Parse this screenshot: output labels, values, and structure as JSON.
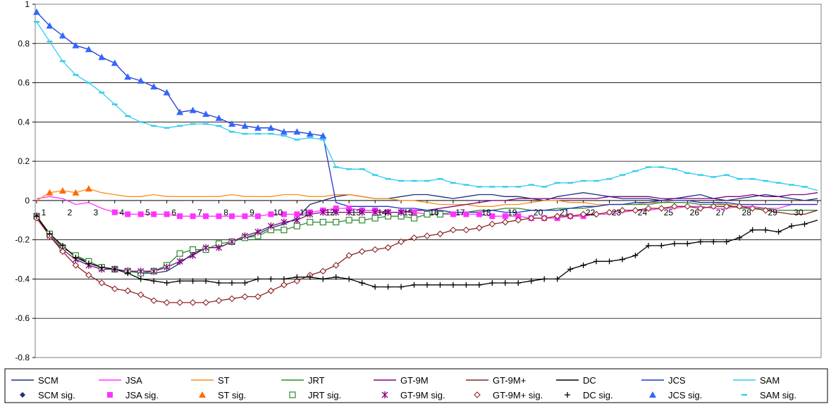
{
  "chart_data": {
    "type": "line",
    "title": "",
    "xlabel": "",
    "ylabel": "",
    "ylim": [
      -0.8,
      1.0
    ],
    "yticks": [
      "1",
      "0.8",
      "0.6",
      "0.4",
      "0.2",
      "0",
      "-0.2",
      "-0.4",
      "-0.6",
      "-0.8"
    ],
    "xticks": [
      "1",
      "2",
      "3",
      "4",
      "5",
      "6",
      "7",
      "8",
      "9",
      "10",
      "11",
      "12",
      "13",
      "14",
      "15",
      "16",
      "17",
      "18",
      "19",
      "20",
      "21",
      "22",
      "23",
      "24",
      "25",
      "26",
      "27",
      "28",
      "29",
      "30"
    ],
    "grid": "horizontal",
    "legend_position": "bottom",
    "legend": {
      "lines": [
        {
          "label": "SCM",
          "color": "#1f2f7a"
        },
        {
          "label": "JSA",
          "color": "#ff33ff"
        },
        {
          "label": "ST",
          "color": "#ff8c1a"
        },
        {
          "label": "JRT",
          "color": "#2e8b2e"
        },
        {
          "label": "GT-9M",
          "color": "#800080"
        },
        {
          "label": "GT-9M+",
          "color": "#8b2323"
        },
        {
          "label": "DC",
          "color": "#000000"
        },
        {
          "label": "JCS",
          "color": "#2233cc"
        },
        {
          "label": "SAM",
          "color": "#33ccee"
        }
      ],
      "markers": [
        {
          "label": "SCM sig.",
          "marker": "diamond",
          "color": "#1f2f7a"
        },
        {
          "label": "JSA sig.",
          "marker": "square",
          "color": "#ff33ff"
        },
        {
          "label": "ST sig.",
          "marker": "triangle",
          "color": "#ff6a00"
        },
        {
          "label": "JRT sig.",
          "marker": "open-square",
          "color": "#2e8b2e"
        },
        {
          "label": "GT-9M sig.",
          "marker": "star",
          "color": "#800080"
        },
        {
          "label": "GT-9M+ sig.",
          "marker": "open-diamond",
          "color": "#8b2323"
        },
        {
          "label": "DC sig.",
          "marker": "plus",
          "color": "#000000"
        },
        {
          "label": "JCS sig.",
          "marker": "triangle",
          "color": "#3366ff"
        },
        {
          "label": "SAM sig.",
          "marker": "dash",
          "color": "#33ccee"
        }
      ]
    },
    "series": [
      {
        "name": "SCM",
        "color": "#1f2f7a",
        "marker": "diamond",
        "sig_range": [
          1,
          1
        ],
        "values": [
          -0.08,
          -0.17,
          -0.24,
          -0.28,
          -0.32,
          -0.34,
          -0.35,
          -0.36,
          -0.37,
          -0.37,
          -0.36,
          -0.32,
          -0.27,
          -0.24,
          -0.24,
          -0.21,
          -0.19,
          -0.17,
          -0.14,
          -0.12,
          -0.09,
          -0.02,
          0.0,
          0.02,
          0.03,
          0.02,
          0.01,
          0.01,
          0.02,
          0.03,
          0.03,
          0.02,
          0.01,
          0.02,
          0.03,
          0.03,
          0.02,
          0.02,
          0.01,
          0.0,
          0.02,
          0.03,
          0.04,
          0.03,
          0.02,
          0.01,
          0.01,
          0.01,
          0.0,
          0.01,
          0.02,
          0.03,
          0.01,
          0.0,
          0.01,
          0.02,
          0.03,
          0.02,
          0.01,
          0.0,
          0.01
        ]
      },
      {
        "name": "JSA",
        "color": "#ff33ff",
        "marker": "square",
        "sig_range": [
          4,
          22
        ],
        "values": [
          0.01,
          0.02,
          0.01,
          -0.02,
          -0.01,
          -0.04,
          -0.06,
          -0.07,
          -0.07,
          -0.07,
          -0.07,
          -0.08,
          -0.08,
          -0.08,
          -0.08,
          -0.08,
          -0.08,
          -0.08,
          -0.07,
          -0.07,
          -0.07,
          -0.06,
          -0.05,
          -0.04,
          -0.04,
          -0.05,
          -0.05,
          -0.06,
          -0.06,
          -0.06,
          -0.07,
          -0.07,
          -0.07,
          -0.07,
          -0.07,
          -0.08,
          -0.08,
          -0.08,
          -0.09,
          -0.09,
          -0.09,
          -0.08,
          -0.08,
          -0.07,
          -0.07,
          -0.06,
          -0.05,
          -0.05,
          -0.04,
          -0.04,
          -0.03,
          -0.03,
          -0.04,
          -0.04,
          -0.03,
          -0.03,
          -0.04,
          -0.04,
          -0.02,
          -0.02,
          -0.02
        ]
      },
      {
        "name": "ST",
        "color": "#ff8c1a",
        "marker": "triangle",
        "sig_range": [
          1.5,
          3
        ],
        "values": [
          0.0,
          0.04,
          0.05,
          0.04,
          0.06,
          0.04,
          0.03,
          0.02,
          0.02,
          0.03,
          0.02,
          0.02,
          0.02,
          0.02,
          0.02,
          0.03,
          0.02,
          0.02,
          0.02,
          0.03,
          0.03,
          0.02,
          0.02,
          0.03,
          0.03,
          0.02,
          0.01,
          0.01,
          0.0,
          0.0,
          -0.01,
          -0.02,
          -0.02,
          -0.02,
          -0.03,
          -0.03,
          -0.02,
          -0.02,
          -0.01,
          0.0,
          0.0,
          -0.01,
          -0.01,
          -0.02,
          -0.02,
          -0.02,
          -0.02,
          -0.01,
          -0.01,
          0.0,
          0.0,
          -0.01,
          -0.01,
          -0.02,
          -0.02,
          -0.02,
          -0.02,
          -0.02,
          -0.02,
          -0.02,
          -0.02
        ]
      },
      {
        "name": "JRT",
        "color": "#2e8b2e",
        "marker": "open-square",
        "sig_range": [
          1,
          16.5
        ],
        "values": [
          -0.08,
          -0.17,
          -0.24,
          -0.28,
          -0.31,
          -0.34,
          -0.35,
          -0.36,
          -0.37,
          -0.36,
          -0.33,
          -0.27,
          -0.25,
          -0.25,
          -0.22,
          -0.21,
          -0.19,
          -0.18,
          -0.15,
          -0.15,
          -0.13,
          -0.11,
          -0.11,
          -0.11,
          -0.1,
          -0.1,
          -0.09,
          -0.08,
          -0.08,
          -0.09,
          -0.07,
          -0.07,
          -0.06,
          -0.06,
          -0.05,
          -0.05,
          -0.04,
          -0.04,
          -0.05,
          -0.05,
          -0.04,
          -0.04,
          -0.04,
          -0.03,
          -0.02,
          -0.02,
          -0.02,
          -0.02,
          -0.01,
          -0.01,
          -0.01,
          -0.02,
          -0.02,
          -0.02,
          -0.04,
          -0.04,
          -0.04,
          -0.05,
          -0.05,
          -0.05,
          -0.05
        ]
      },
      {
        "name": "GT-9M",
        "color": "#800080",
        "marker": "star",
        "sig_range": [
          1,
          15
        ],
        "values": [
          -0.08,
          -0.18,
          -0.25,
          -0.3,
          -0.33,
          -0.35,
          -0.35,
          -0.36,
          -0.36,
          -0.36,
          -0.34,
          -0.31,
          -0.28,
          -0.24,
          -0.24,
          -0.21,
          -0.18,
          -0.16,
          -0.13,
          -0.11,
          -0.1,
          -0.07,
          -0.06,
          -0.06,
          -0.06,
          -0.06,
          -0.06,
          -0.06,
          -0.06,
          -0.05,
          -0.05,
          -0.04,
          -0.03,
          -0.02,
          -0.01,
          0.0,
          0.0,
          0.01,
          0.01,
          0.01,
          0.01,
          0.01,
          0.01,
          0.01,
          0.02,
          0.02,
          0.02,
          0.02,
          0.01,
          0.01,
          0.01,
          0.01,
          0.01,
          0.02,
          0.02,
          0.03,
          0.02,
          0.02,
          0.03,
          0.03,
          0.04
        ]
      },
      {
        "name": "GT-9M+",
        "color": "#8b2323",
        "marker": "open-diamond",
        "sig_range": [
          1,
          29
        ],
        "values": [
          -0.09,
          -0.18,
          -0.26,
          -0.33,
          -0.38,
          -0.42,
          -0.45,
          -0.46,
          -0.48,
          -0.51,
          -0.52,
          -0.52,
          -0.52,
          -0.52,
          -0.51,
          -0.5,
          -0.49,
          -0.49,
          -0.46,
          -0.43,
          -0.41,
          -0.38,
          -0.36,
          -0.33,
          -0.28,
          -0.26,
          -0.25,
          -0.24,
          -0.21,
          -0.19,
          -0.18,
          -0.17,
          -0.15,
          -0.15,
          -0.14,
          -0.12,
          -0.11,
          -0.1,
          -0.09,
          -0.09,
          -0.08,
          -0.08,
          -0.07,
          -0.07,
          -0.06,
          -0.05,
          -0.05,
          -0.04,
          -0.04,
          -0.03,
          -0.03,
          -0.04,
          -0.03,
          -0.03,
          -0.03,
          -0.04,
          -0.05,
          -0.06,
          -0.07,
          -0.07,
          -0.05
        ]
      },
      {
        "name": "DC",
        "color": "#000000",
        "marker": "plus",
        "sig_range": [
          1,
          30.5
        ],
        "values": [
          -0.08,
          -0.17,
          -0.23,
          -0.29,
          -0.32,
          -0.34,
          -0.35,
          -0.37,
          -0.4,
          -0.41,
          -0.42,
          -0.41,
          -0.41,
          -0.41,
          -0.42,
          -0.42,
          -0.42,
          -0.4,
          -0.4,
          -0.4,
          -0.39,
          -0.39,
          -0.4,
          -0.39,
          -0.4,
          -0.42,
          -0.44,
          -0.44,
          -0.44,
          -0.43,
          -0.43,
          -0.43,
          -0.43,
          -0.43,
          -0.43,
          -0.42,
          -0.42,
          -0.42,
          -0.41,
          -0.4,
          -0.4,
          -0.35,
          -0.33,
          -0.31,
          -0.31,
          -0.3,
          -0.28,
          -0.23,
          -0.23,
          -0.22,
          -0.22,
          -0.21,
          -0.21,
          -0.21,
          -0.19,
          -0.15,
          -0.15,
          -0.16,
          -0.13,
          -0.12,
          -0.1
        ]
      },
      {
        "name": "JCS",
        "color": "#2233cc",
        "marker": "triangle",
        "sig_range": [
          1,
          12
        ],
        "values": [
          0.96,
          0.89,
          0.84,
          0.79,
          0.77,
          0.73,
          0.7,
          0.63,
          0.61,
          0.58,
          0.55,
          0.45,
          0.46,
          0.44,
          0.42,
          0.39,
          0.38,
          0.37,
          0.37,
          0.35,
          0.35,
          0.34,
          0.33,
          -0.01,
          -0.03,
          -0.03,
          -0.03,
          -0.03,
          -0.04,
          -0.04,
          -0.05,
          -0.05,
          -0.06,
          -0.06,
          -0.06,
          -0.05,
          -0.06,
          -0.06,
          -0.05,
          -0.05,
          -0.05,
          -0.04,
          -0.03,
          -0.03,
          -0.02,
          -0.02,
          -0.01,
          -0.01,
          0.0,
          0.0,
          0.0,
          -0.01,
          -0.01,
          -0.01,
          -0.02,
          -0.02,
          -0.02,
          -0.02,
          -0.02,
          -0.02,
          -0.02
        ]
      },
      {
        "name": "SAM",
        "color": "#33ccee",
        "marker": "dash",
        "sig_range": [
          1,
          30.5
        ],
        "values": [
          0.91,
          0.81,
          0.71,
          0.64,
          0.6,
          0.55,
          0.49,
          0.43,
          0.4,
          0.38,
          0.37,
          0.38,
          0.39,
          0.39,
          0.38,
          0.35,
          0.34,
          0.34,
          0.34,
          0.33,
          0.31,
          0.32,
          0.31,
          0.17,
          0.16,
          0.16,
          0.13,
          0.11,
          0.1,
          0.1,
          0.1,
          0.11,
          0.09,
          0.08,
          0.07,
          0.07,
          0.07,
          0.07,
          0.08,
          0.07,
          0.09,
          0.09,
          0.1,
          0.1,
          0.11,
          0.13,
          0.15,
          0.17,
          0.17,
          0.16,
          0.14,
          0.13,
          0.12,
          0.13,
          0.11,
          0.11,
          0.1,
          0.09,
          0.08,
          0.07,
          0.05
        ]
      }
    ]
  }
}
